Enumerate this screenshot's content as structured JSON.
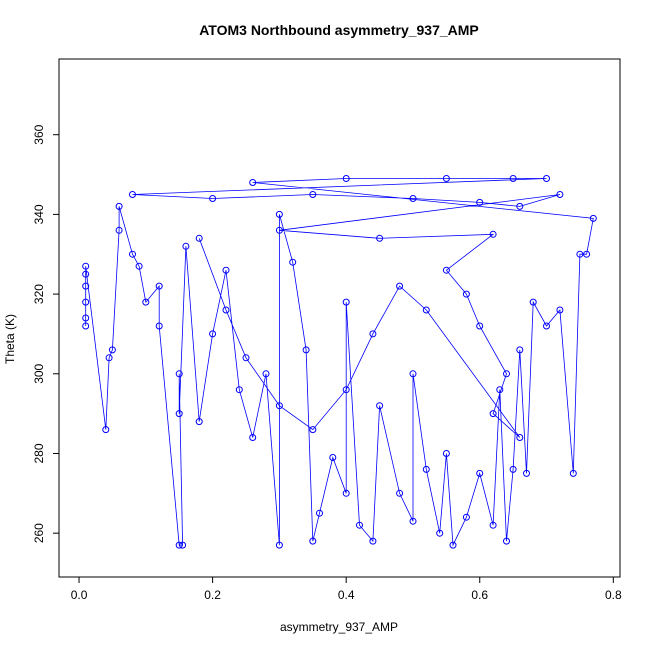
{
  "chart_data": {
    "type": "scatter",
    "title": "ATOM3 Northbound asymmetry_937_AMP",
    "xlabel": "asymmetry_937_AMP",
    "ylabel": "Theta (K)",
    "xlim": [
      -0.03,
      0.81
    ],
    "ylim": [
      249,
      379
    ],
    "x_ticks": [
      0.0,
      0.2,
      0.4,
      0.6,
      0.8
    ],
    "x_tick_labels": [
      "0.0",
      "0.2",
      "0.4",
      "0.6",
      "0.8"
    ],
    "y_ticks": [
      260,
      280,
      300,
      320,
      340,
      360
    ],
    "y_tick_labels": [
      "260",
      "280",
      "300",
      "320",
      "340",
      "360"
    ],
    "marker": "open-circle",
    "connected": true,
    "color": "#0000ff",
    "grid": false,
    "series": [
      {
        "points": [
          [
            0.01,
            312
          ],
          [
            0.01,
            314
          ],
          [
            0.01,
            318
          ],
          [
            0.01,
            322
          ],
          [
            0.01,
            325
          ],
          [
            0.01,
            327
          ],
          [
            0.04,
            286
          ],
          [
            0.045,
            304
          ],
          [
            0.05,
            306
          ],
          [
            0.06,
            336
          ],
          [
            0.06,
            342
          ],
          [
            0.08,
            330
          ],
          [
            0.09,
            327
          ],
          [
            0.1,
            318
          ],
          [
            0.12,
            322
          ],
          [
            0.12,
            312
          ],
          [
            0.15,
            257
          ],
          [
            0.155,
            257
          ],
          [
            0.15,
            300
          ],
          [
            0.15,
            290
          ],
          [
            0.16,
            332
          ],
          [
            0.18,
            288
          ],
          [
            0.2,
            310
          ],
          [
            0.22,
            326
          ],
          [
            0.24,
            296
          ],
          [
            0.26,
            284
          ],
          [
            0.28,
            300
          ],
          [
            0.3,
            257
          ],
          [
            0.3,
            340
          ],
          [
            0.32,
            328
          ],
          [
            0.34,
            306
          ],
          [
            0.35,
            258
          ],
          [
            0.36,
            265
          ],
          [
            0.38,
            279
          ],
          [
            0.4,
            270
          ],
          [
            0.4,
            318
          ],
          [
            0.42,
            262
          ],
          [
            0.44,
            258
          ],
          [
            0.45,
            292
          ],
          [
            0.48,
            270
          ],
          [
            0.5,
            263
          ],
          [
            0.5,
            300
          ],
          [
            0.52,
            276
          ],
          [
            0.54,
            260
          ],
          [
            0.55,
            280
          ],
          [
            0.56,
            257
          ],
          [
            0.58,
            264
          ],
          [
            0.6,
            275
          ],
          [
            0.62,
            262
          ],
          [
            0.63,
            296
          ],
          [
            0.64,
            258
          ],
          [
            0.65,
            276
          ],
          [
            0.66,
            306
          ],
          [
            0.67,
            275
          ],
          [
            0.68,
            318
          ],
          [
            0.7,
            312
          ],
          [
            0.72,
            316
          ],
          [
            0.74,
            275
          ],
          [
            0.75,
            330
          ],
          [
            0.76,
            330
          ],
          [
            0.77,
            339
          ],
          [
            0.26,
            348
          ],
          [
            0.4,
            349
          ],
          [
            0.55,
            349
          ],
          [
            0.65,
            349
          ],
          [
            0.7,
            349
          ],
          [
            0.08,
            345
          ],
          [
            0.2,
            344
          ],
          [
            0.35,
            345
          ],
          [
            0.5,
            344
          ],
          [
            0.6,
            343
          ],
          [
            0.66,
            342
          ],
          [
            0.72,
            345
          ],
          [
            0.3,
            336
          ],
          [
            0.45,
            334
          ],
          [
            0.62,
            335
          ],
          [
            0.55,
            326
          ],
          [
            0.58,
            320
          ],
          [
            0.6,
            312
          ],
          [
            0.64,
            300
          ],
          [
            0.62,
            290
          ],
          [
            0.66,
            284
          ],
          [
            0.52,
            316
          ],
          [
            0.48,
            322
          ],
          [
            0.44,
            310
          ],
          [
            0.4,
            296
          ],
          [
            0.35,
            286
          ],
          [
            0.3,
            292
          ],
          [
            0.25,
            304
          ],
          [
            0.22,
            316
          ],
          [
            0.18,
            334
          ]
        ]
      }
    ]
  }
}
